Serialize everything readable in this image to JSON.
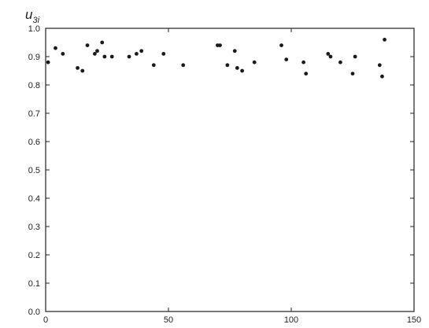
{
  "chart_data": {
    "type": "scatter",
    "title": "",
    "xlabel": "",
    "ylabel": {
      "main": "u",
      "subscript": "3i"
    },
    "xlim": [
      0,
      150
    ],
    "ylim": [
      0,
      1.0
    ],
    "xticks": [
      {
        "value": 0,
        "label": "0"
      },
      {
        "value": 50,
        "label": "50"
      },
      {
        "value": 100,
        "label": "100"
      },
      {
        "value": 150,
        "label": "150"
      }
    ],
    "yticks": [
      {
        "value": 0.0,
        "label": "0.0"
      },
      {
        "value": 0.1,
        "label": "0.1"
      },
      {
        "value": 0.2,
        "label": "0.2"
      },
      {
        "value": 0.3,
        "label": "0.3"
      },
      {
        "value": 0.4,
        "label": "0.4"
      },
      {
        "value": 0.5,
        "label": "0.5"
      },
      {
        "value": 0.6,
        "label": "0.6"
      },
      {
        "value": 0.7,
        "label": "0.7"
      },
      {
        "value": 0.8,
        "label": "0.8"
      },
      {
        "value": 0.9,
        "label": "0.9"
      },
      {
        "value": 1.0,
        "label": "1.0"
      }
    ],
    "grid": false,
    "points": [
      {
        "x": 1,
        "y": 0.88
      },
      {
        "x": 4,
        "y": 0.93
      },
      {
        "x": 7,
        "y": 0.91
      },
      {
        "x": 13,
        "y": 0.86
      },
      {
        "x": 15,
        "y": 0.85
      },
      {
        "x": 17,
        "y": 0.94
      },
      {
        "x": 20,
        "y": 0.91
      },
      {
        "x": 21,
        "y": 0.92
      },
      {
        "x": 23,
        "y": 0.95
      },
      {
        "x": 24,
        "y": 0.9
      },
      {
        "x": 27,
        "y": 0.9
      },
      {
        "x": 34,
        "y": 0.9
      },
      {
        "x": 37,
        "y": 0.91
      },
      {
        "x": 39,
        "y": 0.92
      },
      {
        "x": 44,
        "y": 0.87
      },
      {
        "x": 48,
        "y": 0.91
      },
      {
        "x": 56,
        "y": 0.87
      },
      {
        "x": 70,
        "y": 0.94
      },
      {
        "x": 71,
        "y": 0.94
      },
      {
        "x": 74,
        "y": 0.87
      },
      {
        "x": 77,
        "y": 0.92
      },
      {
        "x": 78,
        "y": 0.86
      },
      {
        "x": 80,
        "y": 0.85
      },
      {
        "x": 85,
        "y": 0.88
      },
      {
        "x": 96,
        "y": 0.94
      },
      {
        "x": 98,
        "y": 0.89
      },
      {
        "x": 105,
        "y": 0.88
      },
      {
        "x": 106,
        "y": 0.84
      },
      {
        "x": 115,
        "y": 0.91
      },
      {
        "x": 116,
        "y": 0.9
      },
      {
        "x": 120,
        "y": 0.88
      },
      {
        "x": 125,
        "y": 0.84
      },
      {
        "x": 126,
        "y": 0.9
      },
      {
        "x": 136,
        "y": 0.87
      },
      {
        "x": 137,
        "y": 0.83
      },
      {
        "x": 138,
        "y": 0.96
      }
    ]
  }
}
